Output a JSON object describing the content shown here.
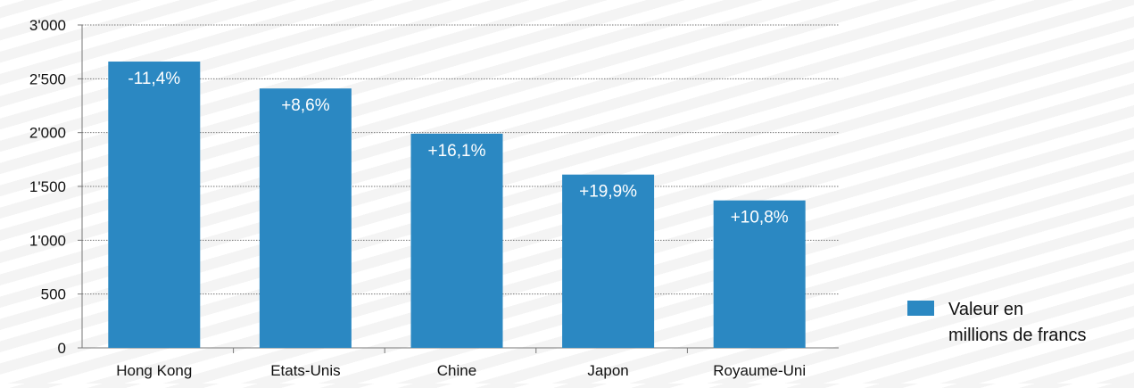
{
  "chart_data": {
    "type": "bar",
    "categories": [
      "Hong Kong",
      "Etats-Unis",
      "Chine",
      "Japon",
      "Royaume-Uni"
    ],
    "values": [
      2660,
      2410,
      1990,
      1610,
      1370
    ],
    "data_labels": [
      "-11,4%",
      "+8,6%",
      "+16,1%",
      "+19,9%",
      "+10,8%"
    ],
    "series": [
      {
        "name": "Valeur en millions de francs",
        "values": [
          2660,
          2410,
          1990,
          1610,
          1370
        ]
      }
    ],
    "legend": {
      "line1": "Valeur en",
      "line2": "millions de francs",
      "placement": "right"
    },
    "title": "",
    "xlabel": "",
    "ylabel": "",
    "ylim": [
      0,
      3000
    ],
    "yticks": [
      0,
      500,
      1000,
      1500,
      2000,
      2500,
      3000
    ],
    "ytick_labels": [
      "0",
      "500",
      "1'000",
      "1'500",
      "2'000",
      "2'500",
      "3'000"
    ],
    "grid": "horizontal dotted",
    "colors": {
      "bar": "#2b88c2",
      "grid": "#777777",
      "text": "#111111",
      "data_label": "#ffffff"
    }
  }
}
